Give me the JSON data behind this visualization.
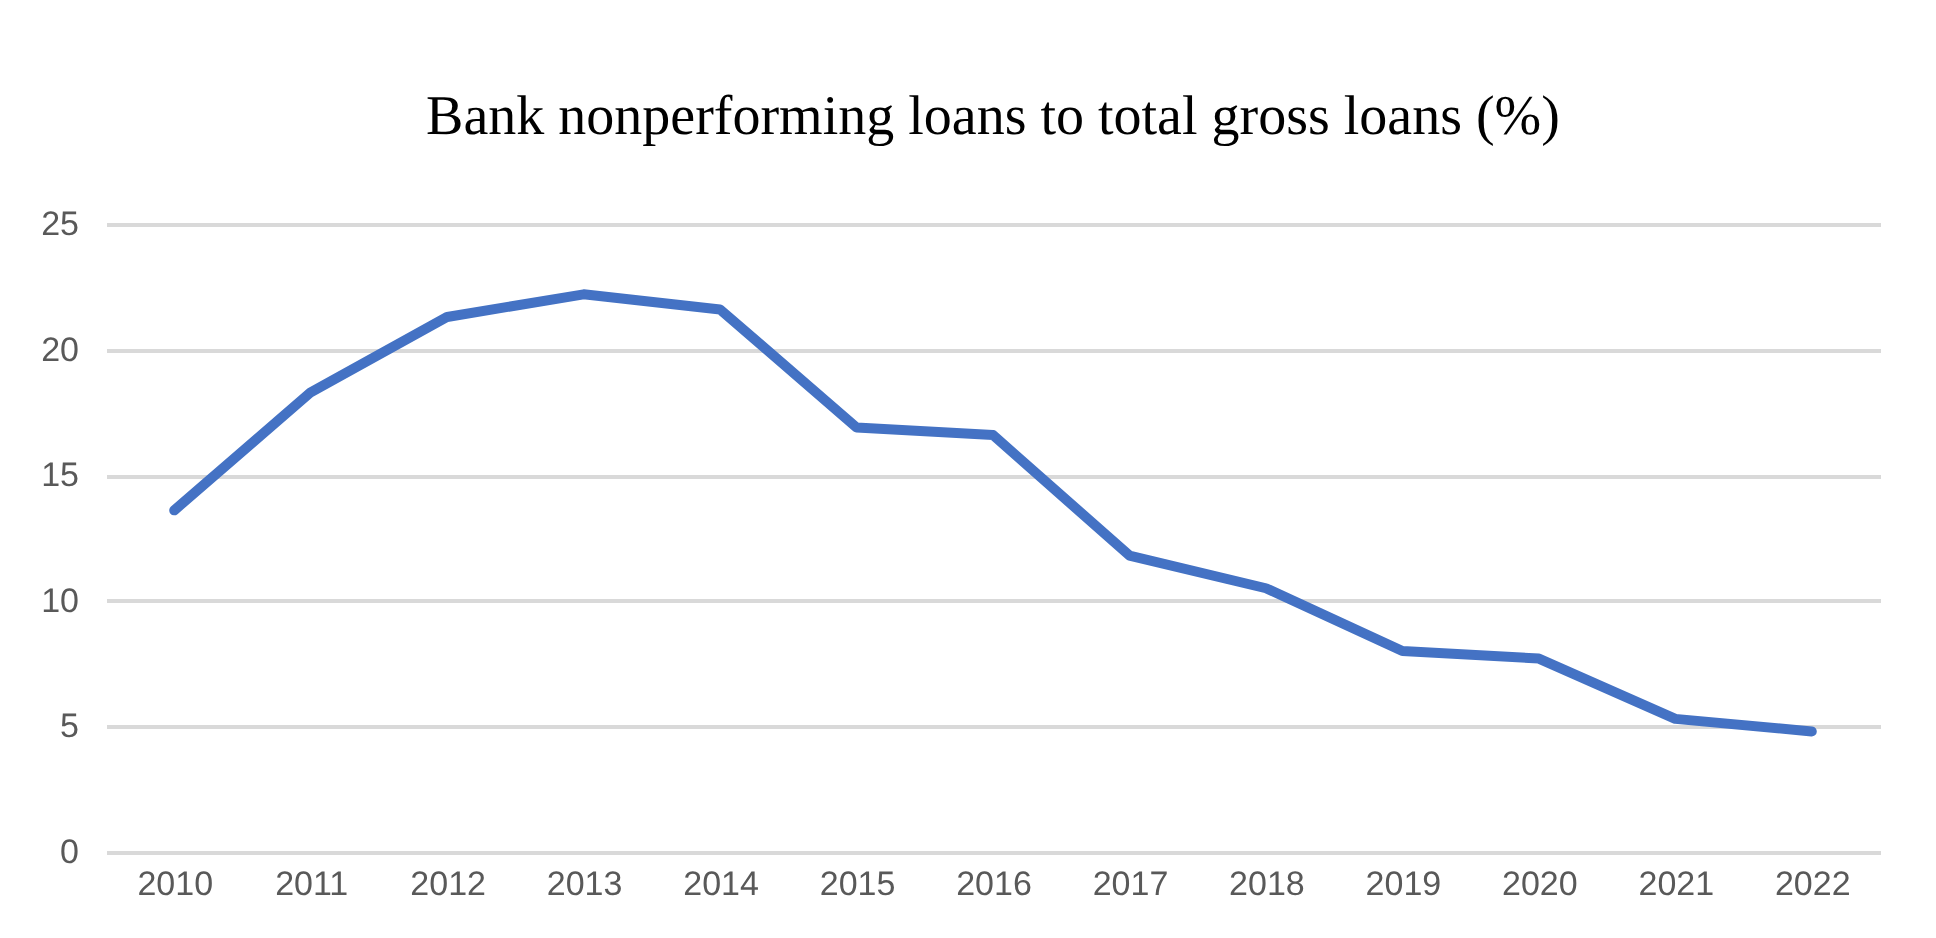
{
  "chart_data": {
    "type": "line",
    "title": "Bank nonperforming loans to total gross loans (%)",
    "categories": [
      "2010",
      "2011",
      "2012",
      "2013",
      "2014",
      "2015",
      "2016",
      "2017",
      "2018",
      "2019",
      "2020",
      "2021",
      "2022"
    ],
    "series": [
      {
        "color": "#4472c4",
        "values": [
          13.6,
          18.3,
          21.3,
          22.2,
          21.6,
          16.9,
          16.6,
          11.8,
          10.5,
          8.0,
          7.7,
          5.3,
          4.8
        ]
      }
    ],
    "ylim": [
      0,
      25
    ],
    "yticks": [
      0,
      5,
      10,
      15,
      20,
      25
    ],
    "grid": "y",
    "marker": "none",
    "line_style": "solid"
  }
}
